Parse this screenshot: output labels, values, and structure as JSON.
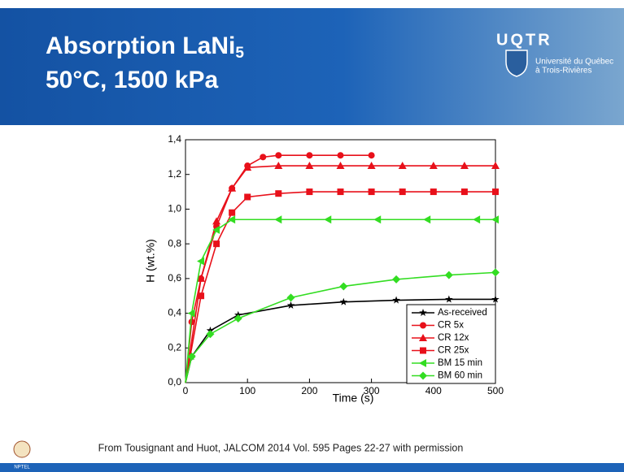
{
  "slide": {
    "title_main": "Absorption LaNi",
    "title_sub": "5",
    "title_line2": "50°C, 1500 kPa",
    "logo": {
      "acronym": "UQTR",
      "line1": "Université du Québec",
      "line2": "à Trois-Rivières"
    },
    "citation": "From Tousignant and Huot, JALCOM 2014 Vol. 595 Pages 22-27 with permission",
    "footer_logo": "NPTEL"
  },
  "chart_data": {
    "type": "line",
    "x_label": "Time (s)",
    "y_label": "H (wt.%)",
    "xlim": [
      0,
      500
    ],
    "xticks": [
      0,
      100,
      200,
      300,
      400,
      500
    ],
    "ylim": [
      0,
      1.4
    ],
    "yticks": [
      {
        "value": 0,
        "label": "0,0"
      },
      {
        "value": 0.2,
        "label": "0,2"
      },
      {
        "value": 0.4,
        "label": "0,4"
      },
      {
        "value": 0.6,
        "label": "0,6"
      },
      {
        "value": 0.8,
        "label": "0,8"
      },
      {
        "value": 1.0,
        "label": "1,0"
      },
      {
        "value": 1.2,
        "label": "1,2"
      },
      {
        "value": 1.4,
        "label": "1,4"
      }
    ],
    "legend": "lower right",
    "series": [
      {
        "name": "As-received",
        "color": "#000000",
        "marker": "star",
        "x": [
          0,
          10,
          40,
          85,
          170,
          255,
          340,
          425,
          500
        ],
        "values": [
          0,
          0.15,
          0.3,
          0.39,
          0.445,
          0.465,
          0.475,
          0.48,
          0.48
        ]
      },
      {
        "name": "CR 5x",
        "color": "#e8101a",
        "marker": "circle",
        "x": [
          0,
          10,
          25,
          50,
          75,
          100,
          125,
          150,
          200,
          250,
          300
        ],
        "values": [
          0,
          0.35,
          0.6,
          0.9,
          1.12,
          1.25,
          1.3,
          1.31,
          1.31,
          1.31,
          1.31
        ]
      },
      {
        "name": "CR 12x",
        "color": "#e8101a",
        "marker": "triangle",
        "x": [
          0,
          25,
          50,
          75,
          100,
          150,
          200,
          250,
          300,
          350,
          400,
          450,
          500
        ],
        "values": [
          0,
          0.6,
          0.93,
          1.12,
          1.24,
          1.25,
          1.25,
          1.25,
          1.25,
          1.25,
          1.25,
          1.25,
          1.25
        ]
      },
      {
        "name": "CR 25x",
        "color": "#e8101a",
        "marker": "square",
        "x": [
          0,
          25,
          50,
          75,
          100,
          150,
          200,
          250,
          300,
          350,
          400,
          450,
          500
        ],
        "values": [
          0,
          0.5,
          0.8,
          0.98,
          1.07,
          1.09,
          1.1,
          1.1,
          1.1,
          1.1,
          1.1,
          1.1,
          1.1
        ]
      },
      {
        "name": "BM 15 min",
        "color": "#33dd22",
        "marker": "triangle-left",
        "x": [
          0,
          10,
          25,
          50,
          75,
          150,
          230,
          310,
          390,
          470,
          500
        ],
        "values": [
          0,
          0.4,
          0.7,
          0.88,
          0.94,
          0.94,
          0.94,
          0.94,
          0.94,
          0.94,
          0.94
        ]
      },
      {
        "name": "BM 60 min",
        "color": "#33dd22",
        "marker": "diamond",
        "x": [
          0,
          10,
          40,
          85,
          170,
          255,
          340,
          425,
          500
        ],
        "values": [
          0,
          0.15,
          0.28,
          0.37,
          0.49,
          0.555,
          0.595,
          0.62,
          0.635
        ]
      }
    ]
  }
}
